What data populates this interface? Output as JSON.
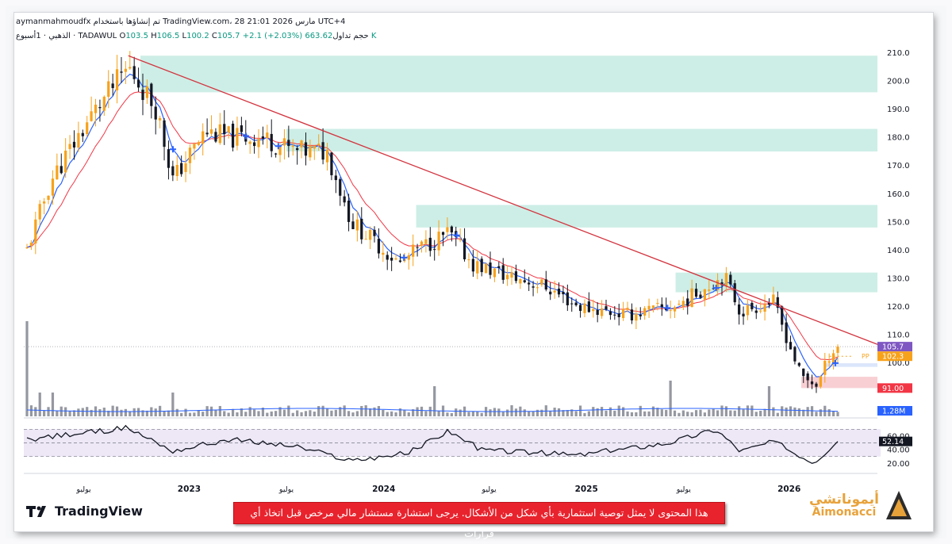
{
  "header": {
    "line1": "aymanmahmoudfx تم إنشاؤها باستخدام TradingView.com، 28 مارس 2026 21:01 UTC+4",
    "symbol": "الذهبي · 1أسبوع · TADAWUL",
    "open_label": "O",
    "open": "103.5",
    "high_label": "H",
    "high": "106.5",
    "low_label": "L",
    "low": "100.2",
    "close_label": "C",
    "close": "105.7",
    "change": "+2.1 (+2.03%)",
    "volume_label": "حجم تداول",
    "volume": "663.62 K"
  },
  "price_axis": {
    "ticks": [
      "210.0",
      "200.0",
      "190.0",
      "180.0",
      "170.0",
      "160.0",
      "150.0",
      "140.0",
      "130.0",
      "120.0",
      "110.0",
      "100.0"
    ],
    "tags": [
      {
        "text": "105.7",
        "color": "#7e57c2"
      },
      {
        "text": "102.3",
        "color": "#f7a21b"
      },
      {
        "text": "91.00",
        "color": "#f23645"
      },
      {
        "text": "1.28M",
        "color": "#2962ff"
      }
    ],
    "pp_label": "PP"
  },
  "rsi_axis": {
    "ticks": [
      "60.00",
      "40.00",
      "20.00"
    ],
    "value": "52.14"
  },
  "time_axis": [
    "يوليو",
    "2023",
    "يوليو",
    "2024",
    "يوليو",
    "2025",
    "يوليو",
    "2026"
  ],
  "footer": {
    "tv_logo": "TradingView",
    "disclaimer": "هذا المحتوى لا يمثل توصية استثمارية بأي شكل من الأشكال. يرجى استشارة مستشار مالي مرخص قبل اتخاذ أي قرارات",
    "brand_ar": "أيموناتشي",
    "brand_en": "Aimonacci"
  },
  "colors": {
    "up": "#f7a21b",
    "down": "#131722",
    "ema_fast": "#2962ff",
    "ema_slow": "#f23645",
    "zone": "#cdeee6",
    "trend": "#d3343f"
  },
  "chart_data": {
    "type": "candlestick",
    "timeframe": "1W",
    "ylim": [
      88,
      213
    ],
    "anchors": [
      {
        "t": 0.0,
        "p": 140
      },
      {
        "t": 0.03,
        "p": 165
      },
      {
        "t": 0.08,
        "p": 188
      },
      {
        "t": 0.125,
        "p": 205
      },
      {
        "t": 0.16,
        "p": 190
      },
      {
        "t": 0.18,
        "p": 165
      },
      {
        "t": 0.22,
        "p": 182
      },
      {
        "t": 0.25,
        "p": 180
      },
      {
        "t": 0.29,
        "p": 180
      },
      {
        "t": 0.33,
        "p": 175
      },
      {
        "t": 0.37,
        "p": 175
      },
      {
        "t": 0.4,
        "p": 150
      },
      {
        "t": 0.46,
        "p": 135
      },
      {
        "t": 0.48,
        "p": 140
      },
      {
        "t": 0.52,
        "p": 146
      },
      {
        "t": 0.55,
        "p": 135
      },
      {
        "t": 0.59,
        "p": 131
      },
      {
        "t": 0.64,
        "p": 127
      },
      {
        "t": 0.68,
        "p": 120
      },
      {
        "t": 0.74,
        "p": 117
      },
      {
        "t": 0.8,
        "p": 120
      },
      {
        "t": 0.86,
        "p": 131
      },
      {
        "t": 0.88,
        "p": 118
      },
      {
        "t": 0.92,
        "p": 122
      },
      {
        "t": 0.955,
        "p": 95
      },
      {
        "t": 0.975,
        "p": 92
      },
      {
        "t": 0.99,
        "p": 103
      },
      {
        "t": 1.0,
        "p": 105.7
      }
    ],
    "last_candle": {
      "open": 103.5,
      "high": 106.5,
      "low": 100.2,
      "close": 105.7
    },
    "supply_zones": [
      [
        196,
        209
      ],
      [
        175,
        183
      ],
      [
        148,
        156
      ],
      [
        125,
        132
      ]
    ],
    "demand_zone": [
      98.5,
      99.8
    ],
    "stop_zone": [
      91,
      95
    ],
    "trendline": [
      {
        "t": 0.125,
        "p": 209
      },
      {
        "t": 1.0,
        "p": 107
      }
    ],
    "pivot_pp": 102.3,
    "rsi": {
      "levels": [
        70,
        50,
        30
      ],
      "last": 52.14,
      "anchors": [
        {
          "t": 0.0,
          "v": 55
        },
        {
          "t": 0.125,
          "v": 72
        },
        {
          "t": 0.18,
          "v": 38
        },
        {
          "t": 0.25,
          "v": 55
        },
        {
          "t": 0.33,
          "v": 45
        },
        {
          "t": 0.4,
          "v": 24
        },
        {
          "t": 0.47,
          "v": 35
        },
        {
          "t": 0.52,
          "v": 68
        },
        {
          "t": 0.56,
          "v": 40
        },
        {
          "t": 0.68,
          "v": 32
        },
        {
          "t": 0.79,
          "v": 50
        },
        {
          "t": 0.85,
          "v": 70
        },
        {
          "t": 0.88,
          "v": 38
        },
        {
          "t": 0.92,
          "v": 52
        },
        {
          "t": 0.97,
          "v": 22
        },
        {
          "t": 1.0,
          "v": 52
        }
      ]
    },
    "volume_last": "1.28M"
  }
}
